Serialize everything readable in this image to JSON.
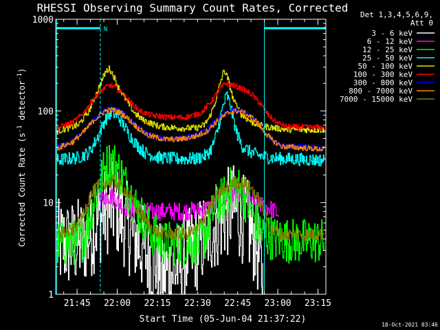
{
  "chart_data": {
    "type": "line",
    "title": "RHESSI Observing Summary Count Rates, Corrected",
    "xlabel": "Start Time (05-Jun-04 21:37:22)",
    "ylabel": "Corrected Count Rate (s^-1 detector^-1)",
    "ylabel_parts": {
      "main": "Corrected Count Rate (s",
      "sup1": "-1",
      "mid": " detector",
      "sup2": "-1",
      "end": ")"
    },
    "yscale": "log",
    "ylim": [
      1,
      1000
    ],
    "xlim_minutes": [
      -0.37,
      100.6
    ],
    "x_unit": "minutes after 21:37:22",
    "x_tick_labels": [
      {
        "label": "21:45",
        "min": 7.63
      },
      {
        "label": "22:00",
        "min": 22.63
      },
      {
        "label": "22:15",
        "min": 37.63
      },
      {
        "label": "22:30",
        "min": 52.63
      },
      {
        "label": "22:45",
        "min": 67.63
      },
      {
        "label": "23:00",
        "min": 82.63
      },
      {
        "label": "23:15",
        "min": 97.63
      }
    ],
    "y_tick_labels": [
      {
        "label": "1",
        "value": 1
      },
      {
        "label": "10",
        "value": 10
      },
      {
        "label": "100",
        "value": 100
      },
      {
        "label": "1000",
        "value": 1000
      }
    ],
    "legend": {
      "header": [
        "Det 1,3,4,5,6,9,",
        "Att 0"
      ],
      "position": "right"
    },
    "night_bars": [
      {
        "start_min": 0,
        "end_min": 16.3,
        "label": "N"
      },
      {
        "start_min": 77.6,
        "end_min": 100.6,
        "label": ""
      }
    ],
    "night_marker_label": "N",
    "vertical_markers_min": [
      {
        "min": 0,
        "style": "solid"
      },
      {
        "min": 16.3,
        "style": "dashed"
      },
      {
        "min": 77.6,
        "style": "solid"
      },
      {
        "min": 100.6,
        "style": "dashed"
      }
    ],
    "series": [
      {
        "name": "3 - 6 keV",
        "color": "#ffffff",
        "noise": 0.5,
        "points": [
          [
            0,
            3.5
          ],
          [
            6,
            3.5
          ],
          [
            10,
            3.8
          ],
          [
            13,
            4.8
          ],
          [
            16,
            6.5
          ],
          [
            19,
            8.5
          ],
          [
            21,
            9
          ],
          [
            24,
            7
          ],
          [
            27,
            5
          ],
          [
            30,
            3.8
          ],
          [
            33,
            2.9
          ],
          [
            36,
            2.4
          ],
          [
            40,
            1.7
          ],
          [
            44,
            1.8
          ],
          [
            48,
            2.6
          ],
          [
            52,
            3.2
          ],
          [
            56,
            4.5
          ],
          [
            60,
            6
          ],
          [
            63,
            7.5
          ],
          [
            66,
            8.5
          ],
          [
            68,
            7.5
          ],
          [
            71,
            6
          ],
          [
            73,
            4.5
          ],
          [
            75,
            3.2
          ],
          [
            77,
            1.3
          ]
        ]
      },
      {
        "name": "6 - 12 keV",
        "color": "#ff00ff",
        "noise": 0.1,
        "points": [
          [
            16,
            11
          ],
          [
            19,
            12
          ],
          [
            21,
            11.5
          ],
          [
            24,
            9.5
          ],
          [
            27,
            8.5
          ],
          [
            30,
            8
          ],
          [
            36,
            8
          ],
          [
            42,
            8
          ],
          [
            48,
            8
          ],
          [
            54,
            8.3
          ],
          [
            58,
            9
          ],
          [
            62,
            11
          ],
          [
            65,
            12.5
          ],
          [
            68,
            12
          ],
          [
            72,
            10.5
          ],
          [
            76,
            9.5
          ],
          [
            80,
            8.5
          ],
          [
            83,
            7.5
          ]
        ]
      },
      {
        "name": "12 - 25 keV",
        "color": "#00ff00",
        "noise": 0.25,
        "points": [
          [
            0,
            3.5
          ],
          [
            6,
            3.6
          ],
          [
            10,
            4
          ],
          [
            12,
            6.5
          ],
          [
            14,
            11
          ],
          [
            16,
            16
          ],
          [
            18,
            24
          ],
          [
            20,
            28
          ],
          [
            22,
            26
          ],
          [
            24,
            20
          ],
          [
            27,
            13
          ],
          [
            30,
            8.5
          ],
          [
            33,
            6
          ],
          [
            36,
            4.5
          ],
          [
            40,
            3.6
          ],
          [
            48,
            3.6
          ],
          [
            52,
            3.6
          ],
          [
            55,
            4
          ],
          [
            57,
            6
          ],
          [
            59,
            9
          ],
          [
            62,
            11
          ],
          [
            65,
            14
          ],
          [
            67,
            15
          ],
          [
            69,
            13
          ],
          [
            71,
            10
          ],
          [
            73,
            7.5
          ],
          [
            75,
            5.5
          ],
          [
            77,
            4.5
          ],
          [
            82,
            4
          ],
          [
            90,
            3.8
          ],
          [
            100,
            3.8
          ]
        ]
      },
      {
        "name": "25 - 50 keV",
        "color": "#00ffff",
        "noise": 0.07,
        "points": [
          [
            0,
            29
          ],
          [
            8,
            31
          ],
          [
            12,
            35
          ],
          [
            15,
            50
          ],
          [
            18,
            80
          ],
          [
            20,
            95
          ],
          [
            22,
            92
          ],
          [
            24,
            78
          ],
          [
            27,
            55
          ],
          [
            30,
            42
          ],
          [
            33,
            35
          ],
          [
            38,
            31
          ],
          [
            45,
            30
          ],
          [
            52,
            30
          ],
          [
            56,
            33
          ],
          [
            58,
            40
          ],
          [
            60,
            60
          ],
          [
            62,
            110
          ],
          [
            63.5,
            150
          ],
          [
            65,
            110
          ],
          [
            67,
            60
          ],
          [
            69,
            42
          ],
          [
            72,
            36
          ],
          [
            75,
            33
          ],
          [
            79,
            31
          ],
          [
            85,
            30
          ],
          [
            100,
            29
          ]
        ]
      },
      {
        "name": "50 - 100 keV",
        "color": "#e6e600",
        "noise": 0.035,
        "points": [
          [
            0,
            60
          ],
          [
            8,
            70
          ],
          [
            12,
            100
          ],
          [
            15,
            160
          ],
          [
            18,
            260
          ],
          [
            19.5,
            290
          ],
          [
            21,
            250
          ],
          [
            23,
            180
          ],
          [
            26,
            130
          ],
          [
            29,
            95
          ],
          [
            32,
            80
          ],
          [
            38,
            68
          ],
          [
            45,
            65
          ],
          [
            52,
            65
          ],
          [
            55,
            70
          ],
          [
            57,
            85
          ],
          [
            59,
            120
          ],
          [
            61,
            200
          ],
          [
            62.5,
            280
          ],
          [
            64,
            220
          ],
          [
            66,
            130
          ],
          [
            69,
            90
          ],
          [
            73,
            75
          ],
          [
            77,
            68
          ],
          [
            85,
            63
          ],
          [
            100,
            62
          ]
        ]
      },
      {
        "name": "100 - 300 keV",
        "color": "#ff0000",
        "noise": 0.03,
        "points": [
          [
            0,
            65
          ],
          [
            6,
            75
          ],
          [
            10,
            95
          ],
          [
            14,
            140
          ],
          [
            18,
            180
          ],
          [
            20,
            190
          ],
          [
            22,
            180
          ],
          [
            25,
            150
          ],
          [
            28,
            120
          ],
          [
            31,
            100
          ],
          [
            35,
            90
          ],
          [
            42,
            85
          ],
          [
            48,
            85
          ],
          [
            54,
            95
          ],
          [
            58,
            130
          ],
          [
            61,
            175
          ],
          [
            63,
            200
          ],
          [
            66,
            190
          ],
          [
            70,
            170
          ],
          [
            73,
            150
          ],
          [
            76,
            120
          ],
          [
            79,
            90
          ],
          [
            82,
            75
          ],
          [
            86,
            67
          ],
          [
            100,
            66
          ]
        ]
      },
      {
        "name": "300 - 800 keV",
        "color": "#0000ff",
        "noise": 0.03,
        "points": [
          [
            0,
            40
          ],
          [
            6,
            47
          ],
          [
            10,
            60
          ],
          [
            14,
            82
          ],
          [
            18,
            103
          ],
          [
            21,
            105
          ],
          [
            24,
            98
          ],
          [
            27,
            82
          ],
          [
            30,
            68
          ],
          [
            34,
            55
          ],
          [
            40,
            50
          ],
          [
            46,
            50
          ],
          [
            52,
            54
          ],
          [
            56,
            62
          ],
          [
            60,
            80
          ],
          [
            64,
            98
          ],
          [
            67,
            102
          ],
          [
            70,
            98
          ],
          [
            74,
            82
          ],
          [
            77,
            64
          ],
          [
            80,
            50
          ],
          [
            84,
            42
          ],
          [
            100,
            39
          ]
        ]
      },
      {
        "name": "800 - 7000 keV",
        "color": "#ff8800",
        "noise": 0.03,
        "points": [
          [
            0,
            39
          ],
          [
            6,
            46
          ],
          [
            10,
            59
          ],
          [
            14,
            80
          ],
          [
            18,
            100
          ],
          [
            21,
            102
          ],
          [
            24,
            95
          ],
          [
            27,
            80
          ],
          [
            30,
            66
          ],
          [
            34,
            54
          ],
          [
            40,
            49
          ],
          [
            46,
            49
          ],
          [
            52,
            53
          ],
          [
            56,
            60
          ],
          [
            60,
            78
          ],
          [
            64,
            95
          ],
          [
            67,
            100
          ],
          [
            70,
            95
          ],
          [
            74,
            80
          ],
          [
            77,
            62
          ],
          [
            80,
            49
          ],
          [
            84,
            41
          ],
          [
            100,
            38
          ]
        ]
      },
      {
        "name": "7000 - 15000 keV",
        "color": "#808000",
        "noise": 0.07,
        "points": [
          [
            0,
            4.5
          ],
          [
            6,
            5
          ],
          [
            9,
            6.5
          ],
          [
            12,
            11
          ],
          [
            15,
            15
          ],
          [
            18,
            16.5
          ],
          [
            21,
            17
          ],
          [
            24,
            15
          ],
          [
            27,
            12
          ],
          [
            30,
            8.5
          ],
          [
            33,
            6.5
          ],
          [
            36,
            5
          ],
          [
            40,
            4.5
          ],
          [
            48,
            4.5
          ],
          [
            52,
            5
          ],
          [
            55,
            7
          ],
          [
            58,
            10
          ],
          [
            61,
            13
          ],
          [
            64,
            15
          ],
          [
            67,
            17
          ],
          [
            70,
            16
          ],
          [
            73,
            14
          ],
          [
            76,
            10
          ],
          [
            78,
            7
          ],
          [
            80,
            5
          ],
          [
            84,
            4.5
          ],
          [
            100,
            4.5
          ]
        ]
      }
    ]
  },
  "footer": {
    "timestamp": "18-Oct-2021 03:46"
  }
}
